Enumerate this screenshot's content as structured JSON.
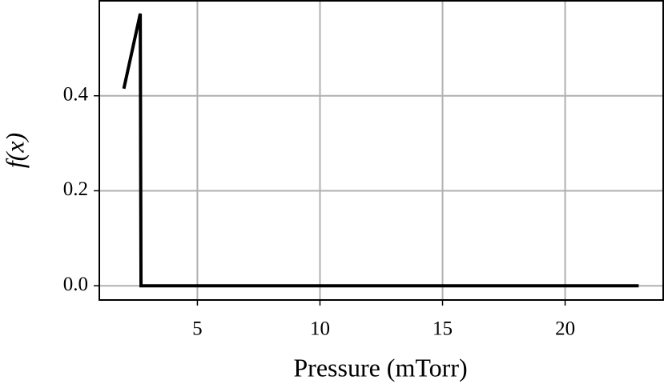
{
  "chart_data": {
    "type": "line",
    "xlabel": "Pressure (mTorr)",
    "ylabel": "f(x)",
    "x": [
      2.0,
      2.67,
      2.7,
      23.0
    ],
    "series": [
      {
        "color": "#000000",
        "values": [
          0.415,
          0.573,
          0,
          0
        ]
      }
    ],
    "xlim": [
      1,
      24
    ],
    "ylim": [
      -0.03,
      0.6
    ],
    "xticks": [
      5,
      10,
      15,
      20
    ],
    "yticks": [
      {
        "value": 0,
        "label": "0.0"
      },
      {
        "value": 0.2,
        "label": "0.2"
      },
      {
        "value": 0.4,
        "label": "0.4"
      }
    ],
    "grid": true
  }
}
